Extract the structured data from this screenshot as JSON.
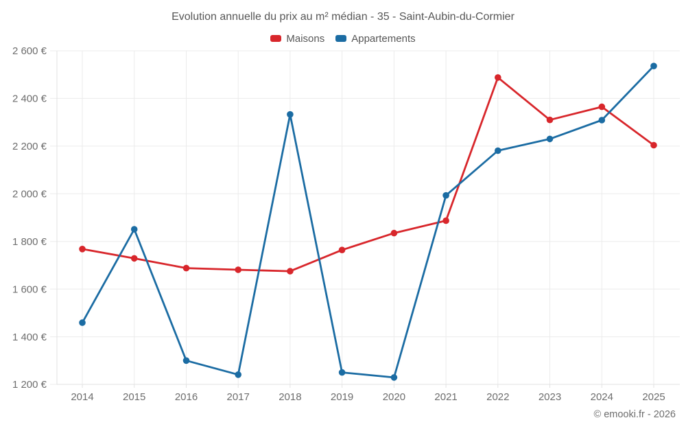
{
  "chart_data": {
    "type": "line",
    "title": "Evolution annuelle du prix au m² médian - 35 - Saint-Aubin-du-Cormier",
    "categories": [
      "2014",
      "2015",
      "2016",
      "2017",
      "2018",
      "2019",
      "2020",
      "2021",
      "2022",
      "2023",
      "2024",
      "2025"
    ],
    "series": [
      {
        "name": "Maisons",
        "color": "#d8262b",
        "values": [
          1768,
          1729,
          1688,
          1681,
          1675,
          1764,
          1835,
          1887,
          2488,
          2310,
          2365,
          2204
        ]
      },
      {
        "name": "Appartements",
        "color": "#1b6ca3",
        "values": [
          1459,
          1851,
          1300,
          1241,
          2333,
          1250,
          1229,
          1993,
          2181,
          2230,
          2309,
          2536
        ]
      }
    ],
    "xlabel": "",
    "ylabel": "",
    "ylim": [
      1200,
      2600
    ],
    "y_ticks": [
      1200,
      1400,
      1600,
      1800,
      2000,
      2200,
      2400,
      2600
    ],
    "y_tick_labels": [
      "1 200 €",
      "1 400 €",
      "1 600 €",
      "1 800 €",
      "2 000 €",
      "2 200 €",
      "2 400 €",
      "2 600 €"
    ],
    "grid": true,
    "legend_position": "top"
  },
  "attribution": "© emooki.fr - 2026",
  "colors": {
    "maisons": "#d8262b",
    "appartements": "#1b6ca3",
    "gridline": "#ebebeb",
    "axis": "#e2e2e2",
    "tick_text": "#6d6d6d",
    "title_text": "#565656"
  }
}
